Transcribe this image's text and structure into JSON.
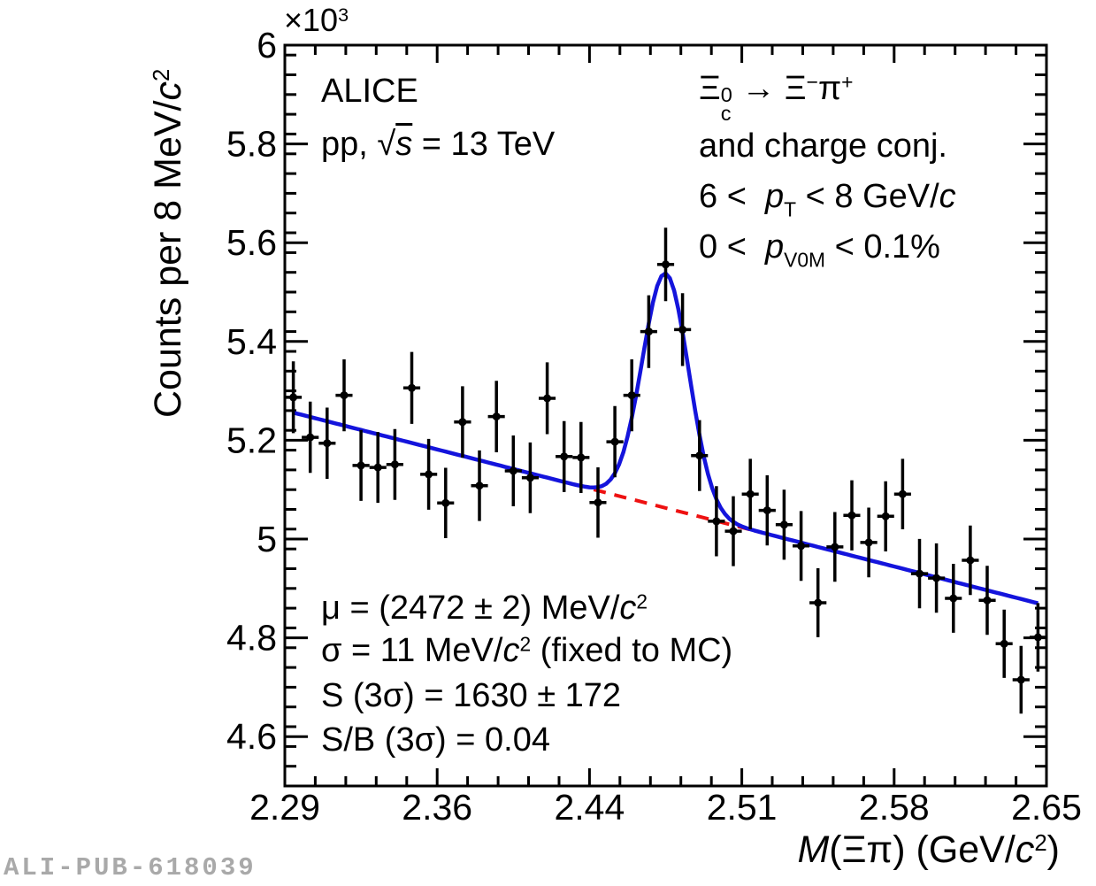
{
  "watermark": "ALI-PUB-618039",
  "colors": {
    "fit_curve": "#1414dc",
    "background_dashed": "#ee1111",
    "marker": "#000000",
    "frame": "#000000",
    "watermark_gray": "#a9a9a9"
  },
  "labels": {
    "alice": "ALICE",
    "collision_html": "pp, √<span class='ol'><i>s</i></span> = 13 TeV",
    "decay_html": "Ξ<span class='stk'><span class='su'>0</span><span class='sb'>c</span></span> → Ξ<sup>−</sup>π<sup>+</sup>",
    "charge_conj": "and charge conj.",
    "pt_range_html": "6 &lt;&nbsp;&nbsp;<i>p</i><sub>T</sub> &lt; 8 GeV/<i>c</i>",
    "mult_range_html": "0 &lt;&nbsp;&nbsp;<i>p</i><sub>V0M</sub> &lt; 0.1%",
    "stat_mu_html": "μ = (2472 ± 2) MeV/<i>c</i><sup>2</sup>",
    "stat_sigma_html": "σ = 11 MeV/<i>c</i><sup>2</sup> (fixed to MC)",
    "stat_s_html": "S (3σ) = 1630 ± 172",
    "stat_sb_html": "S/B (3σ) = 0.04",
    "power_label_html": "×10<sup>3</sup>"
  },
  "chart_data": {
    "type": "scatter",
    "title": "",
    "xlabel": "M(Ξπ) (GeV/c^2)",
    "xlabel_html": "<i>M</i>(Ξπ) (GeV/<i>c</i><sup>2</sup>)",
    "ylabel": "Counts per 8 MeV/c^2",
    "ylabel_html": "Counts per 8 MeV/<i>c</i><sup>2</sup>",
    "xlim": [
      2.292,
      2.652
    ],
    "ylim": [
      4500,
      6000
    ],
    "y_scale_factor_label": "×10^3",
    "grid": false,
    "legend_position": "none",
    "x_ticks": {
      "values": [
        2.292,
        2.364,
        2.436,
        2.508,
        2.58,
        2.652
      ],
      "labels": [
        "2.29",
        "2.36",
        "2.44",
        "2.51",
        "2.58",
        "2.65"
      ]
    },
    "y_ticks": {
      "values": [
        4600,
        4800,
        5000,
        5200,
        5400,
        5600,
        5800,
        6000
      ],
      "labels": [
        "4.6",
        "4.8",
        "5",
        "5.2",
        "5.4",
        "5.6",
        "5.8",
        "6"
      ]
    },
    "x_minor_step": 0.0144,
    "y_minor_step": 40,
    "bin_width": 0.008,
    "x": [
      2.296,
      2.304,
      2.312,
      2.32,
      2.328,
      2.336,
      2.344,
      2.352,
      2.36,
      2.368,
      2.376,
      2.384,
      2.392,
      2.4,
      2.408,
      2.416,
      2.424,
      2.432,
      2.44,
      2.448,
      2.456,
      2.464,
      2.472,
      2.48,
      2.488,
      2.496,
      2.504,
      2.512,
      2.52,
      2.528,
      2.536,
      2.544,
      2.552,
      2.56,
      2.568,
      2.576,
      2.584,
      2.592,
      2.6,
      2.608,
      2.616,
      2.624,
      2.632,
      2.64,
      2.648
    ],
    "y": [
      5287,
      5206,
      5194,
      5291,
      5149,
      5145,
      5151,
      5306,
      5131,
      5073,
      5237,
      5108,
      5248,
      5138,
      5124,
      5285,
      5167,
      5165,
      5074,
      5197,
      5291,
      5420,
      5556,
      5424,
      5169,
      5036,
      5016,
      5091,
      5058,
      5029,
      4986,
      4871,
      4984,
      5048,
      4993,
      5046,
      5091,
      4930,
      4921,
      4880,
      4957,
      4876,
      4788,
      4715,
      4801
    ],
    "yerr_mode": "poisson sqrt(y), approx ±72",
    "fit": {
      "range": [
        2.296,
        2.648
      ],
      "background_linear": {
        "y_at_range_start": 5256,
        "slope_per_gev": -1097
      },
      "gaussian": {
        "mu": 2.472,
        "sigma": 0.011,
        "amplitude": 475
      },
      "dashed_background_range": [
        2.438,
        2.522
      ],
      "results": {
        "mu_mev": "2472 ± 2",
        "sigma_mev": "11 (fixed to MC)",
        "signal_3sigma": "1630 ± 172",
        "s_over_b_3sigma": "0.04"
      }
    }
  }
}
